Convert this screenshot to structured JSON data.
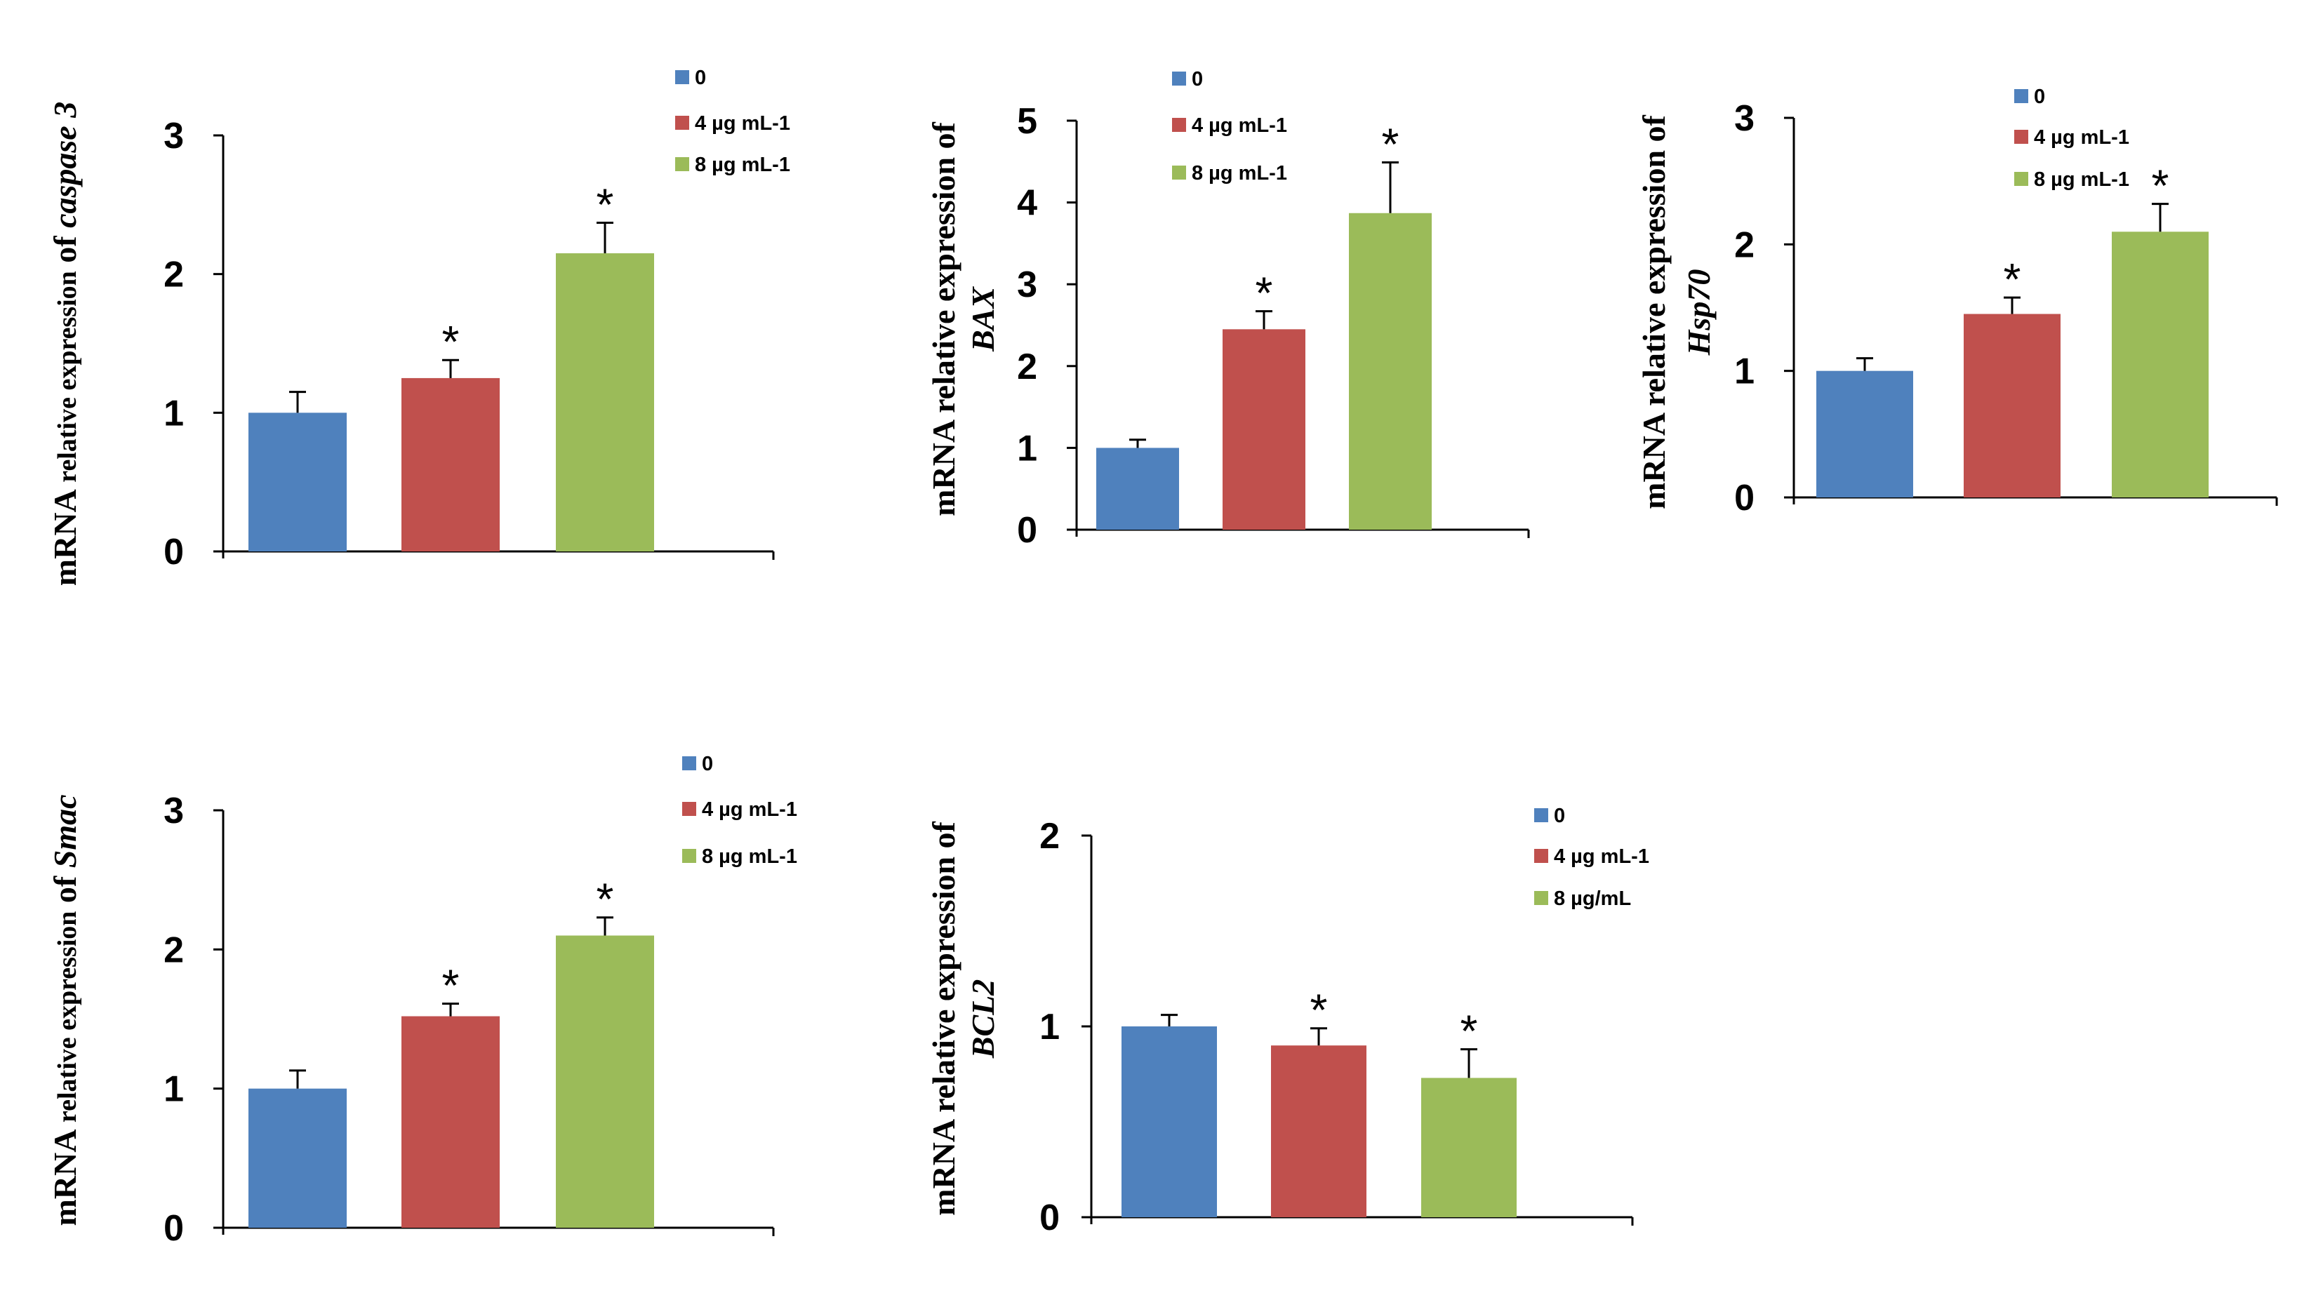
{
  "legend_colors": {
    "s0": "#4F81BD",
    "s1": "#C0504D",
    "s2": "#9BBB59"
  },
  "chart_data": [
    {
      "type": "bar",
      "ylabel_parts": [
        "mRNA",
        "relative expression",
        "of",
        "caspase 3"
      ],
      "ylim": [
        0,
        3
      ],
      "ticks": [
        "0",
        "1",
        "2",
        "3"
      ],
      "series_names": [
        "0",
        "4 µg mL-1",
        "8 µg mL-1"
      ],
      "values": [
        1.0,
        1.25,
        2.15
      ],
      "errors": [
        0.15,
        0.13,
        0.22
      ],
      "significance": [
        "",
        "*",
        "*"
      ]
    },
    {
      "type": "bar",
      "ylabel_parts": [
        "mRNA relative expression",
        "of",
        "BAX"
      ],
      "ylim": [
        0,
        5
      ],
      "ticks": [
        "0",
        "1",
        "2",
        "3",
        "4",
        "5"
      ],
      "series_names": [
        "0",
        "4 µg mL-1",
        "8 µg mL-1"
      ],
      "values": [
        1.0,
        2.45,
        3.87
      ],
      "errors": [
        0.1,
        0.22,
        0.62
      ],
      "significance": [
        "",
        "*",
        "*"
      ]
    },
    {
      "type": "bar",
      "ylabel_parts": [
        "mRNA relative expression",
        "of",
        "Hsp70"
      ],
      "ylim": [
        0,
        3
      ],
      "ticks": [
        "0",
        "1",
        "2",
        "3"
      ],
      "series_names": [
        "0",
        "4 µg mL-1",
        "8 µg mL-1"
      ],
      "values": [
        1.0,
        1.45,
        2.1
      ],
      "errors": [
        0.1,
        0.13,
        0.22
      ],
      "significance": [
        "",
        "*",
        "*"
      ]
    },
    {
      "type": "bar",
      "ylabel_parts": [
        "mRNA",
        "relative expression",
        "of",
        "Smac"
      ],
      "ylim": [
        0,
        3
      ],
      "ticks": [
        "0",
        "1",
        "2",
        "3"
      ],
      "series_names": [
        "0",
        "4 µg mL-1",
        "8 µg mL-1"
      ],
      "values": [
        1.0,
        1.52,
        2.1
      ],
      "errors": [
        0.13,
        0.09,
        0.13
      ],
      "significance": [
        "",
        "*",
        "*"
      ]
    },
    {
      "type": "bar",
      "ylabel_parts": [
        "mRNA relative expression",
        "of",
        "BCL2"
      ],
      "ylim": [
        0,
        2
      ],
      "ticks": [
        "0",
        "1",
        "2"
      ],
      "series_names": [
        "0",
        "4 µg mL-1",
        "8 µg/mL"
      ],
      "values": [
        1.0,
        0.9,
        0.73
      ],
      "errors": [
        0.06,
        0.09,
        0.15
      ],
      "significance": [
        "",
        "*",
        "*"
      ]
    }
  ]
}
